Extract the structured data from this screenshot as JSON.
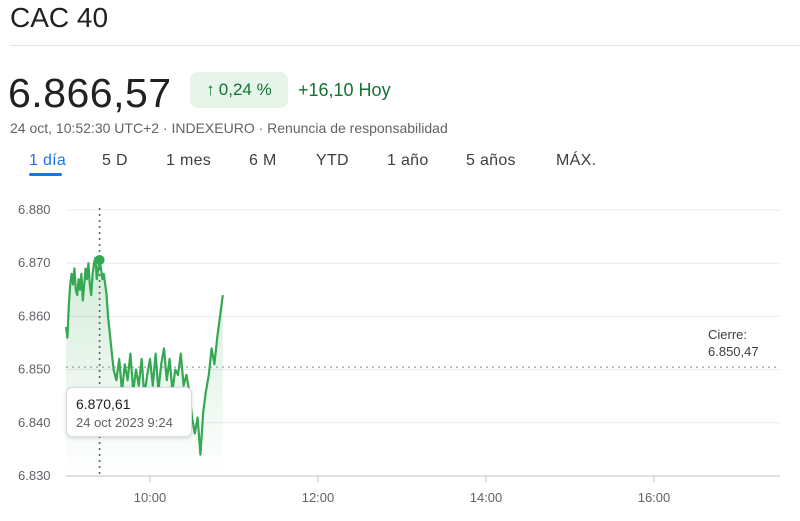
{
  "header": {
    "title": "CAC 40"
  },
  "quote": {
    "price": "6.866,57",
    "change_percent": "0,24 %",
    "change_abs": "+16,10 Hoy",
    "meta": "24 oct, 10:52:30 UTC+2 · INDEXEURO · Renuncia de responsabilidad"
  },
  "tabs": [
    {
      "label": "1 día",
      "active": true
    },
    {
      "label": "5 D"
    },
    {
      "label": "1 mes"
    },
    {
      "label": "6 M"
    },
    {
      "label": "YTD"
    },
    {
      "label": "1 año"
    },
    {
      "label": "5 años"
    },
    {
      "label": "MÁX."
    }
  ],
  "colors": {
    "up": "#137333",
    "line": "#34a853",
    "accent": "#1a73e8"
  },
  "tooltip": {
    "value": "6.870,61",
    "date": "24 oct 2023 9:24"
  },
  "chart_data": {
    "type": "line",
    "y_ticks": [
      "6.880",
      "6.870",
      "6.860",
      "6.850",
      "6.840",
      "6.830"
    ],
    "x_ticks": [
      "10:00",
      "12:00",
      "14:00",
      "16:00"
    ],
    "ylim": [
      6830,
      6880
    ],
    "xlim": [
      "09:00",
      "17:30"
    ],
    "grid": true,
    "previous_close": {
      "label": "Cierre:",
      "value": "6.850,47",
      "y": 6850.47
    },
    "highlight": {
      "x": "09:24",
      "y": 6870.61
    },
    "series": [
      {
        "x": [
          "09:00",
          "09:01",
          "09:02",
          "09:03",
          "09:04",
          "09:05",
          "09:06",
          "09:07",
          "09:08",
          "09:09",
          "09:10",
          "09:11",
          "09:12",
          "09:13",
          "09:14",
          "09:15",
          "09:16",
          "09:17",
          "09:18",
          "09:19",
          "09:20",
          "09:21",
          "09:22",
          "09:23",
          "09:24",
          "09:25",
          "09:26",
          "09:27",
          "09:28",
          "09:29",
          "09:30",
          "09:32",
          "09:34",
          "09:36",
          "09:38",
          "09:40",
          "09:42",
          "09:44",
          "09:46",
          "09:48",
          "09:50",
          "09:52",
          "09:54",
          "09:56",
          "09:58",
          "10:00",
          "10:02",
          "10:04",
          "10:06",
          "10:08",
          "10:10",
          "10:12",
          "10:14",
          "10:16",
          "10:18",
          "10:20",
          "10:22",
          "10:24",
          "10:26",
          "10:28",
          "10:30",
          "10:32",
          "10:34",
          "10:36",
          "10:38",
          "10:40",
          "10:42",
          "10:44",
          "10:46",
          "10:48",
          "10:50",
          "10:52"
        ],
        "y": [
          6858,
          6856,
          6862,
          6866,
          6868,
          6866,
          6869,
          6865,
          6864,
          6867,
          6865,
          6868,
          6863,
          6866,
          6869,
          6867,
          6870,
          6866,
          6864,
          6868,
          6870,
          6871,
          6867,
          6869,
          6870.6,
          6869,
          6867,
          6868,
          6866,
          6864,
          6860,
          6855,
          6850,
          6848,
          6852,
          6846,
          6851,
          6848,
          6853,
          6846,
          6850,
          6847,
          6852,
          6845,
          6849,
          6852,
          6847,
          6853,
          6846,
          6851,
          6854,
          6848,
          6852,
          6846,
          6850,
          6849,
          6853,
          6847,
          6849,
          6846,
          6841,
          6838,
          6841,
          6834,
          6842,
          6846,
          6849,
          6854,
          6851,
          6856,
          6860,
          6864
        ]
      }
    ]
  }
}
